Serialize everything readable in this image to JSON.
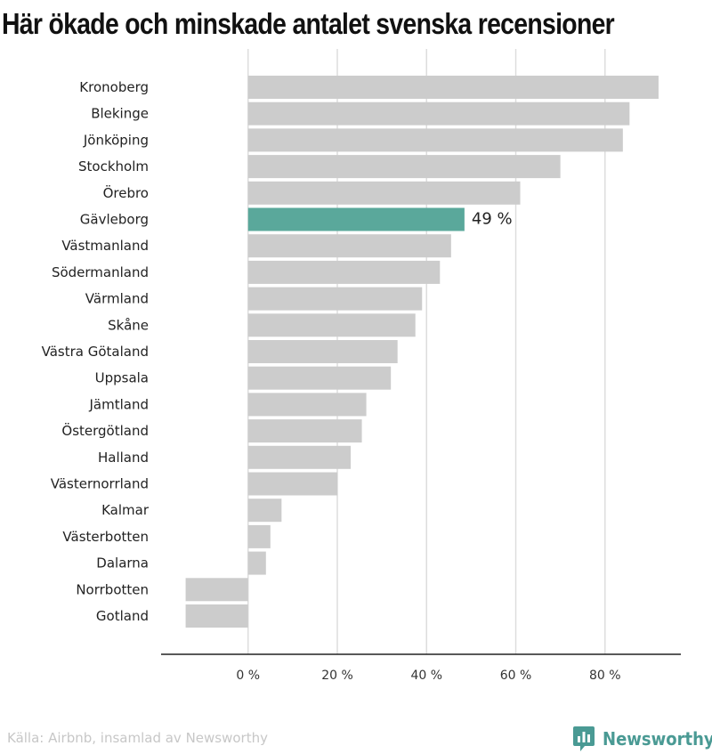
{
  "chart_data": {
    "type": "bar",
    "orientation": "horizontal",
    "title": "Här ökade och minskade antalet svenska recensioner",
    "categories": [
      "Kronoberg",
      "Blekinge",
      "Jönköping",
      "Stockholm",
      "Örebro",
      "Gävleborg",
      "Västmanland",
      "Södermanland",
      "Värmland",
      "Skåne",
      "Västra Götaland",
      "Uppsala",
      "Jämtland",
      "Östergötland",
      "Halland",
      "Västernorrland",
      "Kalmar",
      "Västerbotten",
      "Dalarna",
      "Norrbotten",
      "Gotland"
    ],
    "values": [
      92,
      85.5,
      84,
      70,
      61,
      48.5,
      45.5,
      43,
      39,
      37.5,
      33.5,
      32,
      26.5,
      25.5,
      23,
      20,
      7.5,
      5,
      4,
      -14,
      -14
    ],
    "highlight": {
      "category": "Gävleborg",
      "label": "49 %",
      "color": "#5aa89b"
    },
    "bar_color": "#cccccc",
    "xlim": [
      -19.5,
      97
    ],
    "ticks": [
      0,
      20,
      40,
      60,
      80
    ],
    "tick_labels": [
      "0 %",
      "20 %",
      "40 %",
      "60 %",
      "80 %"
    ],
    "grid": true
  },
  "footer": {
    "source": "Källa: Airbnb, insamlad av Newsworthy",
    "brand": "Newsworthy"
  },
  "colors": {
    "accent": "#5aa89b",
    "bar": "#cccccc",
    "brand": "#4a9a94"
  }
}
